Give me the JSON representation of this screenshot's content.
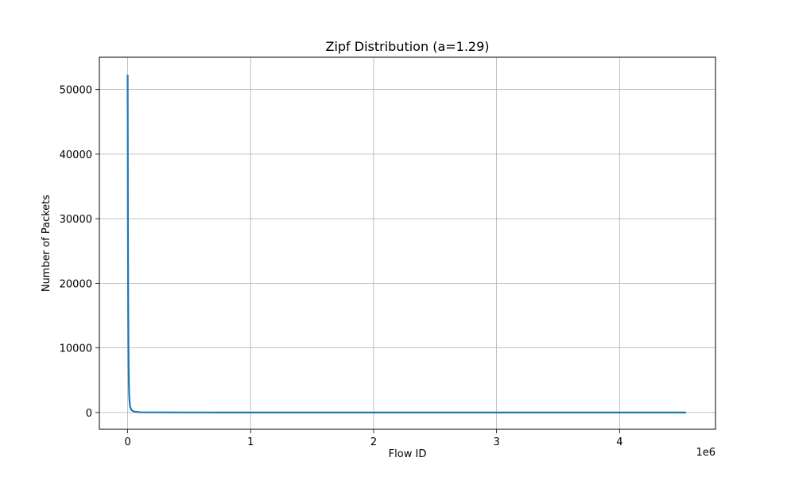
{
  "chart_data": {
    "type": "line",
    "title": "Zipf Distribution (a=1.29)",
    "xlabel": "Flow ID",
    "ylabel": "Number of Packets",
    "x_offset_text": "1e6",
    "xlim": [
      -230000,
      4780000
    ],
    "ylim": [
      -2600,
      55000
    ],
    "x_ticks": [
      0,
      1000000,
      2000000,
      3000000,
      4000000
    ],
    "x_tick_labels": [
      "0",
      "1",
      "2",
      "3",
      "4"
    ],
    "y_ticks": [
      0,
      10000,
      20000,
      30000,
      40000,
      50000
    ],
    "y_tick_labels": [
      "0",
      "10000",
      "20000",
      "30000",
      "40000",
      "50000"
    ],
    "grid": true,
    "series": [
      {
        "color": "#1f77b4",
        "x": [
          1,
          2000,
          4000,
          6000,
          8000,
          10000,
          12000,
          15000,
          20000,
          30000,
          50000,
          100000,
          500000,
          1000000,
          2000000,
          3000000,
          4000000,
          4540000
        ],
        "y": [
          52300,
          30000,
          18000,
          11000,
          7000,
          4500,
          3000,
          1800,
          900,
          400,
          150,
          40,
          5,
          2,
          1,
          0,
          0,
          0
        ]
      }
    ]
  }
}
